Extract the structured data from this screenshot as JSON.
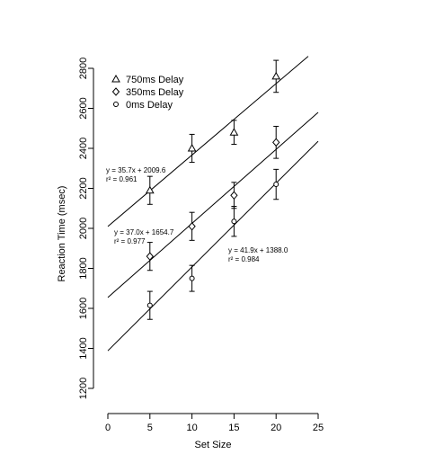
{
  "chart_data": {
    "type": "scatter",
    "title": "",
    "xlabel": "Set Size",
    "ylabel": "Reaction Time (msec)",
    "xlim": [
      0,
      25
    ],
    "ylim": [
      1200,
      2800
    ],
    "x_ticks": [
      "0",
      "5",
      "10",
      "15",
      "20",
      "25"
    ],
    "y_ticks": [
      "1200",
      "1400",
      "1600",
      "1800",
      "2000",
      "2200",
      "2400",
      "2600",
      "2800"
    ],
    "grid": false,
    "legend_position": "top-left",
    "series": [
      {
        "name": "750ms Delay",
        "marker": "triangle",
        "x": [
          5,
          10,
          15,
          20
        ],
        "y": [
          2190,
          2400,
          2480,
          2760
        ],
        "err": [
          70,
          70,
          60,
          80
        ],
        "fit": {
          "slope": 35.7,
          "intercept": 2009.6
        },
        "equation": "y = 35.7x + 2009.6",
        "r2": "r² = 0.961"
      },
      {
        "name": "350ms Delay",
        "marker": "diamond",
        "x": [
          5,
          10,
          15,
          20
        ],
        "y": [
          1860,
          2010,
          2165,
          2430
        ],
        "err": [
          70,
          70,
          65,
          80
        ],
        "fit": {
          "slope": 37.0,
          "intercept": 1654.7
        },
        "equation": "y = 37.0x + 1654.7",
        "r2": "r² = 0.977"
      },
      {
        "name": "0ms Delay",
        "marker": "circle",
        "x": [
          5,
          10,
          15,
          20
        ],
        "y": [
          1615,
          1750,
          2035,
          2220
        ],
        "err": [
          70,
          65,
          75,
          75
        ],
        "fit": {
          "slope": 41.9,
          "intercept": 1388.0
        },
        "equation": "y = 41.9x + 1388.0",
        "r2": "r² = 0.984"
      }
    ]
  }
}
